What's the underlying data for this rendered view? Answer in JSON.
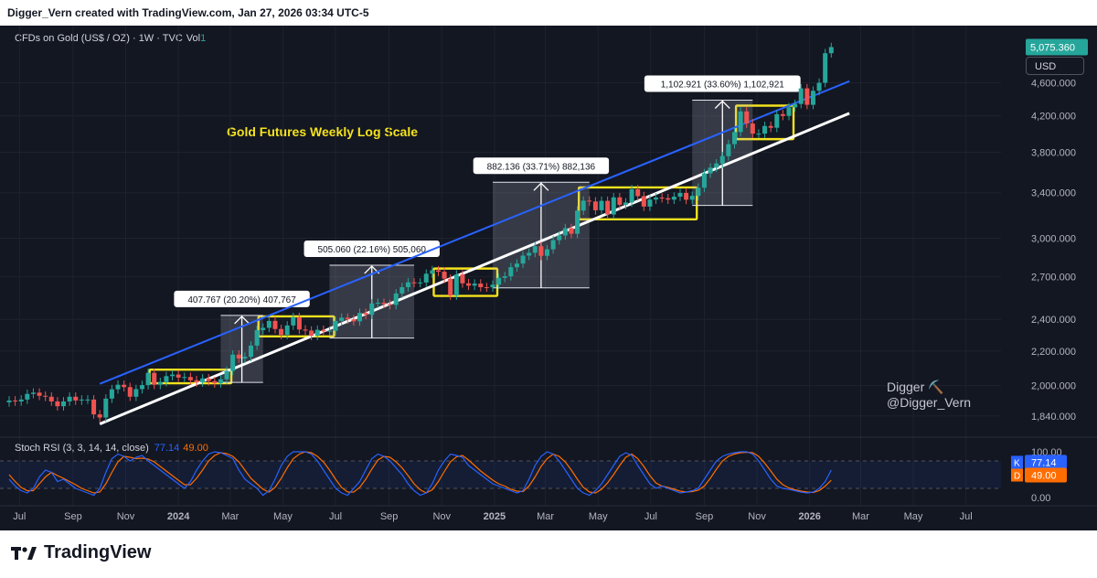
{
  "header": {
    "attribution": "Digger_Vern created with TradingView.com, Jan 27, 2026 03:34 UTC-5"
  },
  "legend": {
    "symbol": "CFDs on Gold (US$ / OZ) · 1W · TVC",
    "volume": "Vol",
    "volume_toggle": "1"
  },
  "currency_button": "USD",
  "annotation_title": "Gold Futures Weekly Log Scale",
  "watermark": {
    "name": "Digger ⛏️",
    "handle": "@Digger_Vern"
  },
  "last_price": "5,075.360",
  "price_axis": [
    "4,600.000",
    "4,200.000",
    "3,800.000",
    "3,400.000",
    "3,000.000",
    "2,700.000",
    "2,400.000",
    "2,200.000",
    "2,000.000",
    "1,840.000"
  ],
  "time_axis": [
    "Jul",
    "Sep",
    "Nov",
    "2024",
    "Mar",
    "May",
    "Jul",
    "Sep",
    "Nov",
    "2025",
    "Mar",
    "May",
    "Jul",
    "Sep",
    "Nov",
    "2026",
    "Mar",
    "May",
    "Jul"
  ],
  "measures": [
    {
      "label": "407.767 (20.20%) 407,767"
    },
    {
      "label": "505.060 (22.16%) 505,060"
    },
    {
      "label": "882.136 (33.71%) 882,136"
    },
    {
      "label": "1,102.921 (33.60%) 1,102,921"
    }
  ],
  "stoch": {
    "title": "Stoch RSI (3, 3, 14, 14, close)",
    "k_value": "77.14",
    "d_value": "49.00",
    "k_label": "K",
    "d_label": "D",
    "axis": [
      "100.00",
      "0.00"
    ]
  },
  "footer": {
    "brand": "TradingView"
  },
  "colors": {
    "bg": "#131722",
    "up": "#26a69a",
    "down": "#ef5350",
    "blue_line": "#2962ff",
    "yellow": "#f5e21d",
    "k_line": "#2962ff",
    "d_line": "#ff6d00"
  },
  "chart_data": {
    "type": "candlestick",
    "title": "Gold Futures Weekly Log Scale",
    "y_scale": "log",
    "ylim": [
      1780,
      5250
    ],
    "x_range": [
      "2023-06-19",
      "2026-07-31"
    ],
    "last_close": 5075.36,
    "ohlc_weekly_approx": [
      {
        "date": "2023-06-19",
        "close": 1920
      },
      {
        "date": "2023-06-26",
        "close": 1915
      },
      {
        "date": "2023-07-03",
        "close": 1925
      },
      {
        "date": "2023-07-10",
        "close": 1955
      },
      {
        "date": "2023-07-17",
        "close": 1962
      },
      {
        "date": "2023-07-24",
        "close": 1945
      },
      {
        "date": "2023-07-31",
        "close": 1940
      },
      {
        "date": "2023-08-07",
        "close": 1915
      },
      {
        "date": "2023-08-14",
        "close": 1890
      },
      {
        "date": "2023-08-21",
        "close": 1915
      },
      {
        "date": "2023-08-28",
        "close": 1940
      },
      {
        "date": "2023-09-04",
        "close": 1920
      },
      {
        "date": "2023-09-11",
        "close": 1925
      },
      {
        "date": "2023-09-18",
        "close": 1925
      },
      {
        "date": "2023-09-25",
        "close": 1848
      },
      {
        "date": "2023-10-02",
        "close": 1832
      },
      {
        "date": "2023-10-09",
        "close": 1930
      },
      {
        "date": "2023-10-16",
        "close": 1980
      },
      {
        "date": "2023-10-23",
        "close": 2005
      },
      {
        "date": "2023-10-30",
        "close": 1992
      },
      {
        "date": "2023-11-06",
        "close": 1940
      },
      {
        "date": "2023-11-13",
        "close": 1981
      },
      {
        "date": "2023-11-20",
        "close": 2003
      },
      {
        "date": "2023-11-27",
        "close": 2072
      },
      {
        "date": "2023-12-04",
        "close": 2005
      },
      {
        "date": "2023-12-11",
        "close": 2020
      },
      {
        "date": "2023-12-18",
        "close": 2053
      },
      {
        "date": "2023-12-25",
        "close": 2062
      },
      {
        "date": "2024-01-01",
        "close": 2045
      },
      {
        "date": "2024-01-08",
        "close": 2048
      },
      {
        "date": "2024-01-15",
        "close": 2030
      },
      {
        "date": "2024-01-22",
        "close": 2018
      },
      {
        "date": "2024-01-29",
        "close": 2040
      },
      {
        "date": "2024-02-05",
        "close": 2025
      },
      {
        "date": "2024-02-12",
        "close": 2013
      },
      {
        "date": "2024-02-19",
        "close": 2035
      },
      {
        "date": "2024-02-26",
        "close": 2083
      },
      {
        "date": "2024-03-04",
        "close": 2178
      },
      {
        "date": "2024-03-11",
        "close": 2155
      },
      {
        "date": "2024-03-18",
        "close": 2165
      },
      {
        "date": "2024-03-25",
        "close": 2233
      },
      {
        "date": "2024-04-01",
        "close": 2330
      },
      {
        "date": "2024-04-08",
        "close": 2345
      },
      {
        "date": "2024-04-15",
        "close": 2390
      },
      {
        "date": "2024-04-22",
        "close": 2337
      },
      {
        "date": "2024-04-29",
        "close": 2300
      },
      {
        "date": "2024-05-06",
        "close": 2360
      },
      {
        "date": "2024-05-13",
        "close": 2415
      },
      {
        "date": "2024-05-20",
        "close": 2334
      },
      {
        "date": "2024-05-27",
        "close": 2327
      },
      {
        "date": "2024-06-03",
        "close": 2294
      },
      {
        "date": "2024-06-10",
        "close": 2332
      },
      {
        "date": "2024-06-17",
        "close": 2322
      },
      {
        "date": "2024-06-24",
        "close": 2326
      },
      {
        "date": "2024-07-01",
        "close": 2390
      },
      {
        "date": "2024-07-08",
        "close": 2411
      },
      {
        "date": "2024-07-15",
        "close": 2400
      },
      {
        "date": "2024-07-22",
        "close": 2387
      },
      {
        "date": "2024-07-29",
        "close": 2443
      },
      {
        "date": "2024-08-05",
        "close": 2431
      },
      {
        "date": "2024-08-12",
        "close": 2507
      },
      {
        "date": "2024-08-19",
        "close": 2512
      },
      {
        "date": "2024-08-26",
        "close": 2503
      },
      {
        "date": "2024-09-02",
        "close": 2497
      },
      {
        "date": "2024-09-09",
        "close": 2577
      },
      {
        "date": "2024-09-16",
        "close": 2622
      },
      {
        "date": "2024-09-23",
        "close": 2657
      },
      {
        "date": "2024-09-30",
        "close": 2653
      },
      {
        "date": "2024-10-07",
        "close": 2656
      },
      {
        "date": "2024-10-14",
        "close": 2721
      },
      {
        "date": "2024-10-21",
        "close": 2747
      },
      {
        "date": "2024-10-28",
        "close": 2736
      },
      {
        "date": "2024-11-04",
        "close": 2684
      },
      {
        "date": "2024-11-11",
        "close": 2563
      },
      {
        "date": "2024-11-18",
        "close": 2715
      },
      {
        "date": "2024-11-25",
        "close": 2650
      },
      {
        "date": "2024-12-02",
        "close": 2633
      },
      {
        "date": "2024-12-09",
        "close": 2648
      },
      {
        "date": "2024-12-16",
        "close": 2622
      },
      {
        "date": "2024-12-23",
        "close": 2621
      },
      {
        "date": "2024-12-30",
        "close": 2640
      },
      {
        "date": "2025-01-06",
        "close": 2690
      },
      {
        "date": "2025-01-13",
        "close": 2702
      },
      {
        "date": "2025-01-20",
        "close": 2770
      },
      {
        "date": "2025-01-27",
        "close": 2798
      },
      {
        "date": "2025-02-03",
        "close": 2860
      },
      {
        "date": "2025-02-10",
        "close": 2882
      },
      {
        "date": "2025-02-17",
        "close": 2935
      },
      {
        "date": "2025-02-24",
        "close": 2858
      },
      {
        "date": "2025-03-03",
        "close": 2910
      },
      {
        "date": "2025-03-10",
        "close": 2984
      },
      {
        "date": "2025-03-17",
        "close": 3023
      },
      {
        "date": "2025-03-24",
        "close": 3084
      },
      {
        "date": "2025-03-31",
        "close": 3037
      },
      {
        "date": "2025-04-07",
        "close": 3237
      },
      {
        "date": "2025-04-14",
        "close": 3327
      },
      {
        "date": "2025-04-21",
        "close": 3319
      },
      {
        "date": "2025-04-28",
        "close": 3240
      },
      {
        "date": "2025-05-05",
        "close": 3325
      },
      {
        "date": "2025-05-12",
        "close": 3202
      },
      {
        "date": "2025-05-19",
        "close": 3357
      },
      {
        "date": "2025-05-26",
        "close": 3289
      },
      {
        "date": "2025-06-02",
        "close": 3310
      },
      {
        "date": "2025-06-09",
        "close": 3432
      },
      {
        "date": "2025-06-16",
        "close": 3368
      },
      {
        "date": "2025-06-23",
        "close": 3273
      },
      {
        "date": "2025-06-30",
        "close": 3337
      },
      {
        "date": "2025-07-07",
        "close": 3355
      },
      {
        "date": "2025-07-14",
        "close": 3349
      },
      {
        "date": "2025-07-21",
        "close": 3336
      },
      {
        "date": "2025-07-28",
        "close": 3363
      },
      {
        "date": "2025-08-04",
        "close": 3398
      },
      {
        "date": "2025-08-11",
        "close": 3335
      },
      {
        "date": "2025-08-18",
        "close": 3371
      },
      {
        "date": "2025-08-25",
        "close": 3447
      },
      {
        "date": "2025-09-01",
        "close": 3586
      },
      {
        "date": "2025-09-08",
        "close": 3643
      },
      {
        "date": "2025-09-15",
        "close": 3685
      },
      {
        "date": "2025-09-22",
        "close": 3760
      },
      {
        "date": "2025-09-29",
        "close": 3886
      },
      {
        "date": "2025-10-06",
        "close": 4018
      },
      {
        "date": "2025-10-13",
        "close": 4252
      },
      {
        "date": "2025-10-20",
        "close": 4113
      },
      {
        "date": "2025-10-27",
        "close": 4000
      },
      {
        "date": "2025-11-03",
        "close": 4000
      },
      {
        "date": "2025-11-10",
        "close": 4085
      },
      {
        "date": "2025-11-17",
        "close": 4065
      },
      {
        "date": "2025-11-24",
        "close": 4220
      },
      {
        "date": "2025-12-01",
        "close": 4200
      },
      {
        "date": "2025-12-08",
        "close": 4300
      },
      {
        "date": "2025-12-15",
        "close": 4340
      },
      {
        "date": "2025-12-22",
        "close": 4530
      },
      {
        "date": "2025-12-29",
        "close": 4330
      },
      {
        "date": "2026-01-05",
        "close": 4500
      },
      {
        "date": "2026-01-12",
        "close": 4600
      },
      {
        "date": "2026-01-19",
        "close": 4990
      },
      {
        "date": "2026-01-26",
        "close": 5075
      }
    ],
    "consolidation_boxes": [
      {
        "from": "2023-12-04",
        "to": "2024-02-26",
        "low": 2013,
        "high": 2090
      },
      {
        "from": "2024-04-08",
        "to": "2024-06-24",
        "low": 2290,
        "high": 2420
      },
      {
        "from": "2024-10-28",
        "to": "2024-12-30",
        "low": 2560,
        "high": 2760
      },
      {
        "from": "2025-04-14",
        "to": "2025-08-18",
        "low": 3160,
        "high": 3450
      },
      {
        "from": "2025-10-13",
        "to": "2025-12-08",
        "low": 3940,
        "high": 4320
      }
    ],
    "measure_ranges": [
      {
        "from": "2024-02-19",
        "to": "2024-04-08",
        "low": 2018,
        "high": 2426,
        "change": 407.767,
        "pct": 20.2
      },
      {
        "from": "2024-06-24",
        "to": "2024-09-30",
        "low": 2280,
        "high": 2785,
        "change": 505.06,
        "pct": 22.16
      },
      {
        "from": "2024-12-30",
        "to": "2025-04-21",
        "low": 2617,
        "high": 3499,
        "change": 882.136,
        "pct": 33.71
      },
      {
        "from": "2025-08-18",
        "to": "2025-10-27",
        "low": 3283,
        "high": 4386,
        "change": 1102.921,
        "pct": 33.6
      }
    ],
    "trendlines": [
      {
        "name": "upper",
        "color": "blue",
        "from": {
          "date": "2023-10-02",
          "price": 2010
        },
        "to": {
          "date": "2026-02-16",
          "price": 4620
        }
      },
      {
        "name": "lower",
        "color": "white",
        "from": {
          "date": "2023-10-02",
          "price": 1800
        },
        "to": {
          "date": "2026-02-16",
          "price": 4230
        }
      }
    ],
    "stoch_rsi": {
      "params": [
        3,
        3,
        14,
        14
      ],
      "k_last": 77.14,
      "d_last": 49.0,
      "bands": [
        80,
        20
      ],
      "k_weekly_approx": [
        40,
        25,
        15,
        10,
        20,
        45,
        60,
        55,
        35,
        40,
        30,
        20,
        15,
        10,
        5,
        20,
        55,
        85,
        95,
        90,
        80,
        88,
        92,
        80,
        70,
        60,
        50,
        40,
        30,
        20,
        35,
        60,
        80,
        95,
        100,
        98,
        92,
        85,
        60,
        40,
        30,
        20,
        5,
        15,
        40,
        70,
        90,
        100,
        100,
        100,
        95,
        80,
        60,
        40,
        20,
        10,
        5,
        20,
        35,
        60,
        85,
        95,
        90,
        80,
        65,
        50,
        30,
        15,
        5,
        10,
        30,
        60,
        80,
        95,
        92,
        88,
        70,
        60,
        50,
        40,
        30,
        25,
        20,
        15,
        10,
        15,
        40,
        70,
        90,
        100,
        95,
        80,
        60,
        40,
        20,
        10,
        5,
        15,
        30,
        50,
        70,
        90,
        98,
        92,
        70,
        50,
        30,
        20,
        25,
        20,
        15,
        10,
        12,
        15,
        20,
        40,
        60,
        80,
        90,
        95,
        98,
        100,
        100,
        95,
        80,
        60,
        40,
        25,
        20,
        18,
        15,
        12,
        10,
        12,
        20,
        35,
        60,
        77
      ],
      "d_weekly_approx": [
        50,
        35,
        22,
        15,
        15,
        30,
        45,
        55,
        48,
        42,
        35,
        28,
        20,
        15,
        10,
        12,
        30,
        55,
        78,
        90,
        88,
        85,
        86,
        84,
        78,
        68,
        58,
        48,
        38,
        28,
        28,
        42,
        60,
        80,
        92,
        98,
        96,
        90,
        78,
        60,
        42,
        30,
        18,
        12,
        22,
        42,
        65,
        85,
        95,
        100,
        98,
        90,
        78,
        60,
        40,
        22,
        12,
        12,
        22,
        40,
        62,
        82,
        90,
        88,
        78,
        65,
        48,
        30,
        17,
        10,
        17,
        35,
        57,
        78,
        89,
        92,
        82,
        70,
        58,
        48,
        38,
        30,
        25,
        18,
        14,
        13,
        25,
        45,
        68,
        85,
        95,
        90,
        78,
        60,
        40,
        22,
        12,
        10,
        18,
        32,
        50,
        70,
        88,
        95,
        85,
        68,
        48,
        32,
        25,
        22,
        18,
        14,
        12,
        13,
        16,
        25,
        42,
        62,
        80,
        90,
        95,
        98,
        99,
        98,
        90,
        75,
        58,
        40,
        28,
        21,
        17,
        14,
        12,
        11,
        15,
        25,
        38,
        49
      ]
    }
  }
}
